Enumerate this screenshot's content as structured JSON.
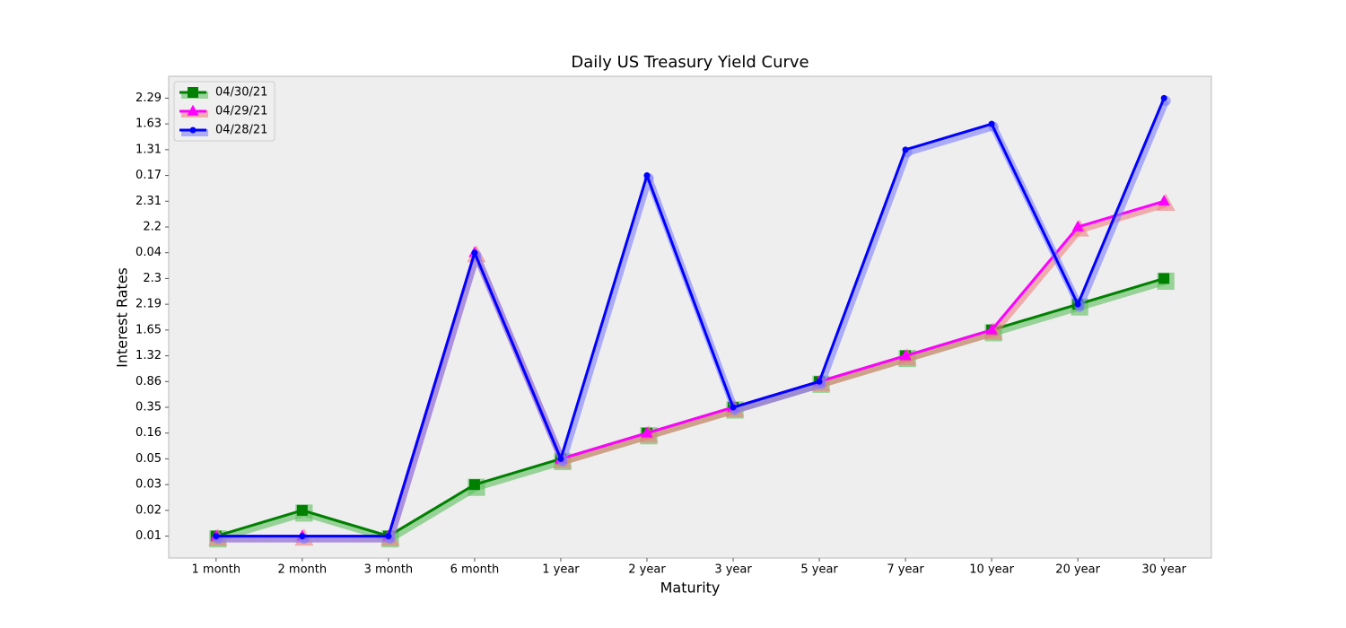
{
  "chart_data": {
    "type": "line",
    "title": "Daily US Treasury Yield Curve",
    "x_label": "Maturity",
    "y_label": "Interest Rates",
    "categories": [
      "1 month",
      "2 month",
      "3 month",
      "6 month",
      "1 year",
      "2 year",
      "3 year",
      "5 year",
      "7 year",
      "10 year",
      "20 year",
      "30 year"
    ],
    "ylim": [
      -0.85,
      17.85
    ],
    "yticks": [
      {
        "value": 0,
        "label": "0.01"
      },
      {
        "value": 1,
        "label": "0.02"
      },
      {
        "value": 2,
        "label": "0.03"
      },
      {
        "value": 3,
        "label": "0.05"
      },
      {
        "value": 4,
        "label": "0.16"
      },
      {
        "value": 5,
        "label": "0.35"
      },
      {
        "value": 6,
        "label": "0.86"
      },
      {
        "value": 7,
        "label": "1.32"
      },
      {
        "value": 8,
        "label": "1.65"
      },
      {
        "value": 9,
        "label": "2.19"
      },
      {
        "value": 10,
        "label": "2.3"
      },
      {
        "value": 11,
        "label": "0.04"
      },
      {
        "value": 12,
        "label": "2.2"
      },
      {
        "value": 13,
        "label": "2.31"
      },
      {
        "value": 14,
        "label": "0.17"
      },
      {
        "value": 15,
        "label": "1.31"
      },
      {
        "value": 16,
        "label": "1.63"
      },
      {
        "value": 17,
        "label": "2.29"
      }
    ],
    "legend": "upper left",
    "series": [
      {
        "name": "04/30/21",
        "color": "#008000",
        "shadow_color": "#5fbf5f",
        "marker": "square",
        "values": [
          0,
          1,
          0,
          2,
          3,
          4,
          5,
          6,
          7,
          8,
          9,
          10
        ]
      },
      {
        "name": "04/29/21",
        "color": "#ff00ff",
        "shadow_color": "#f08080",
        "marker": "triangle",
        "values": [
          0,
          0,
          0,
          11,
          3,
          4,
          5,
          6,
          7,
          8,
          12,
          13
        ]
      },
      {
        "name": "04/28/21",
        "color": "#0000ff",
        "shadow_color": "#7f7fff",
        "marker": "circle",
        "values": [
          0,
          0,
          0,
          11,
          3,
          14,
          5,
          6,
          15,
          16,
          9,
          17
        ]
      }
    ]
  }
}
